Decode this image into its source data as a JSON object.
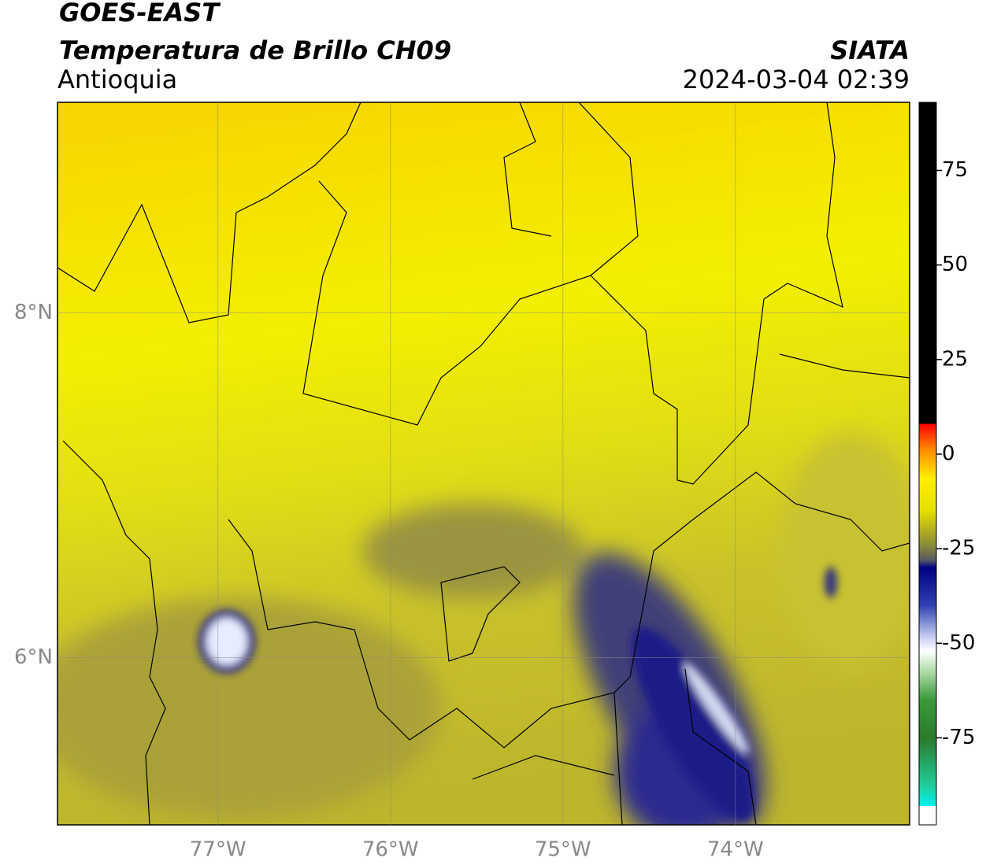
{
  "chart_data": {
    "type": "map",
    "title": "GOES-EAST",
    "subtitle": "Temperatura de Brillo CH09",
    "region": "Antioquia",
    "source": "SIATA",
    "datetime": "2024-03-04 02:39",
    "xlim": [
      -77.93,
      -72.99
    ],
    "ylim": [
      5.03,
      9.22
    ],
    "xticks": [
      {
        "value": -77,
        "label": "77°W"
      },
      {
        "value": -76,
        "label": "76°W"
      },
      {
        "value": -75,
        "label": "75°W"
      },
      {
        "value": -74,
        "label": "74°W"
      }
    ],
    "yticks": [
      {
        "value": 8,
        "label": "8°N"
      },
      {
        "value": 6,
        "label": "6°N"
      }
    ],
    "grid": true,
    "colorbar": {
      "clim": [
        -98,
        93
      ],
      "ticks": [
        75,
        50,
        25,
        0,
        -25,
        -50,
        -75
      ]
    }
  }
}
